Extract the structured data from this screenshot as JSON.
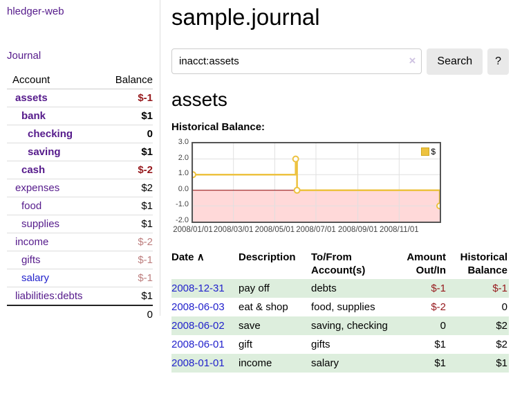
{
  "app": {
    "brand": "hledger-web",
    "nav_journal": "Journal"
  },
  "sidebar": {
    "header": {
      "account": "Account",
      "balance": "Balance"
    },
    "accounts": [
      {
        "name": "assets",
        "balance": "$-1",
        "depth": 1,
        "bold": true,
        "link": "purple",
        "neg": "strong"
      },
      {
        "name": "bank",
        "balance": "$1",
        "depth": 2,
        "bold": true,
        "link": "purple",
        "neg": "none"
      },
      {
        "name": "checking",
        "balance": "0",
        "depth": 3,
        "bold": true,
        "link": "purple",
        "neg": "none"
      },
      {
        "name": "saving",
        "balance": "$1",
        "depth": 3,
        "bold": true,
        "link": "purple",
        "neg": "none"
      },
      {
        "name": "cash",
        "balance": "$-2",
        "depth": 2,
        "bold": true,
        "link": "purple",
        "neg": "strong"
      },
      {
        "name": "expenses",
        "balance": "$2",
        "depth": 1,
        "bold": false,
        "link": "purple",
        "neg": "none"
      },
      {
        "name": "food",
        "balance": "$1",
        "depth": 2,
        "bold": false,
        "link": "purple",
        "neg": "none"
      },
      {
        "name": "supplies",
        "balance": "$1",
        "depth": 2,
        "bold": false,
        "link": "purple",
        "neg": "none"
      },
      {
        "name": "income",
        "balance": "$-2",
        "depth": 1,
        "bold": false,
        "link": "purple",
        "neg": "soft"
      },
      {
        "name": "gifts",
        "balance": "$-1",
        "depth": 2,
        "bold": false,
        "link": "purple",
        "neg": "soft"
      },
      {
        "name": "salary",
        "balance": "$-1",
        "depth": 2,
        "bold": false,
        "link": "blue",
        "neg": "soft"
      },
      {
        "name": "liabilities:debts",
        "balance": "$1",
        "depth": 1,
        "bold": false,
        "link": "purple",
        "neg": "none"
      }
    ],
    "total": "0"
  },
  "header": {
    "title": "sample.journal"
  },
  "search": {
    "value": "inacct:assets",
    "clear_icon": "×",
    "button_label": "Search",
    "help_label": "?"
  },
  "register": {
    "heading": "assets",
    "chart_label": "Historical Balance:",
    "table": {
      "headers": {
        "date": "Date",
        "sort_indicator": "∧",
        "description": "Description",
        "accounts": "To/From Account(s)",
        "amount": "Amount Out/In",
        "balance": "Historical Balance"
      },
      "rows": [
        {
          "date": "2008-12-31",
          "description": "pay off",
          "accounts": "debts",
          "amount": "$-1",
          "amount_neg": true,
          "balance": "$-1",
          "balance_neg": true,
          "shaded": true
        },
        {
          "date": "2008-06-03",
          "description": "eat & shop",
          "accounts": "food, supplies",
          "amount": "$-2",
          "amount_neg": true,
          "balance": "0",
          "balance_neg": false,
          "shaded": false
        },
        {
          "date": "2008-06-02",
          "description": "save",
          "accounts": "saving, checking",
          "amount": "0",
          "amount_neg": false,
          "balance": "$2",
          "balance_neg": false,
          "shaded": true
        },
        {
          "date": "2008-06-01",
          "description": "gift",
          "accounts": "gifts",
          "amount": "$1",
          "amount_neg": false,
          "balance": "$2",
          "balance_neg": false,
          "shaded": false
        },
        {
          "date": "2008-01-01",
          "description": "income",
          "accounts": "salary",
          "amount": "$1",
          "amount_neg": false,
          "balance": "$1",
          "balance_neg": false,
          "shaded": true
        }
      ]
    }
  },
  "chart_data": {
    "type": "line",
    "subtype": "step",
    "title": "Historical Balance:",
    "series": [
      {
        "name": "$",
        "color": "#EDC240",
        "points": [
          [
            "2008-01-01",
            1
          ],
          [
            "2008-06-01",
            2
          ],
          [
            "2008-06-03",
            0
          ],
          [
            "2008-12-31",
            -1
          ]
        ]
      }
    ],
    "xlim": [
      "2008-01-01",
      "2008-12-31"
    ],
    "ylim": [
      -2.0,
      3.0
    ],
    "x_ticks": [
      "2008/01/01",
      "2008/03/01",
      "2008/05/01",
      "2008/07/01",
      "2008/09/01",
      "2008/11/01"
    ],
    "y_ticks": [
      3.0,
      2.0,
      1.0,
      0.0,
      -1.0,
      -2.0
    ],
    "grid": true,
    "legend_position": "top-right",
    "negative_region_fill": "#ffd9d9",
    "zero_line_color": "#8b0000",
    "grid_color": "#e0e0e0",
    "frame_color": "#545454"
  }
}
